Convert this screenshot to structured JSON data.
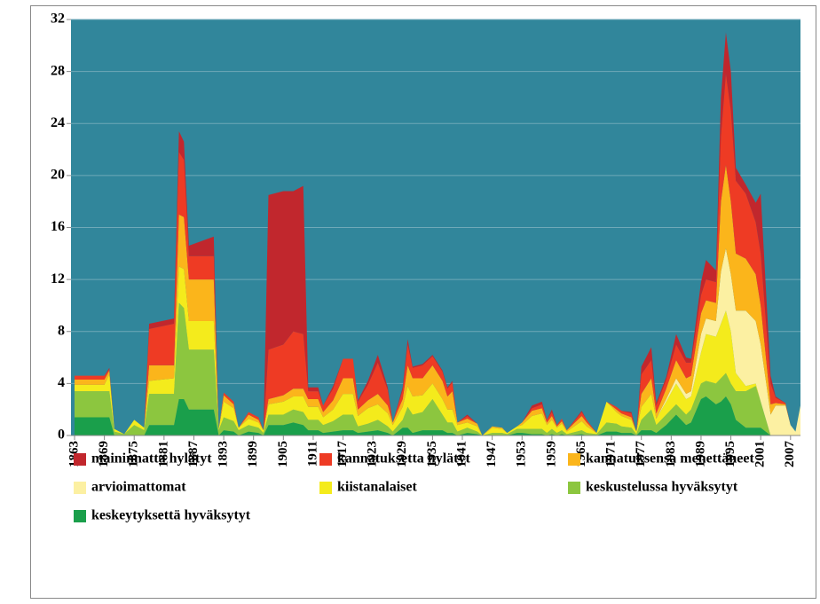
{
  "chart_data": {
    "type": "stacked_area",
    "x": [
      1863,
      1869,
      1870,
      1871,
      1873,
      1875,
      1877,
      1878,
      1883,
      1884,
      1885,
      1886,
      1891,
      1892,
      1893,
      1895,
      1896,
      1898,
      1900,
      1901,
      1902,
      1905,
      1907,
      1909,
      1910,
      1912,
      1913,
      1915,
      1917,
      1919,
      1920,
      1922,
      1924,
      1926,
      1927,
      1929,
      1930,
      1931,
      1933,
      1935,
      1937,
      1938,
      1939,
      1940,
      1942,
      1944,
      1945,
      1947,
      1949,
      1950,
      1952,
      1953,
      1955,
      1957,
      1958,
      1959,
      1960,
      1961,
      1962,
      1965,
      1966,
      1968,
      1970,
      1972,
      1973,
      1975,
      1976,
      1977,
      1979,
      1980,
      1982,
      1984,
      1986,
      1987,
      1989,
      1990,
      1992,
      1993,
      1994,
      1995,
      1996,
      1998,
      2000,
      2001,
      2003,
      2004,
      2006,
      2007,
      2008,
      2009
    ],
    "series": [
      {
        "name": "maininnatta hylätyt",
        "color": "#c1272d",
        "values": [
          0,
          0,
          0.1,
          0,
          0,
          0,
          0,
          0.4,
          0.4,
          1.6,
          1.4,
          0.8,
          1.5,
          0,
          0,
          0,
          0,
          0,
          0,
          0,
          11.9,
          11.8,
          10.8,
          11.4,
          0.3,
          0.3,
          0,
          0.2,
          0,
          0,
          0.1,
          0.3,
          0.6,
          0.2,
          0,
          0.2,
          0.4,
          0.1,
          0.1,
          0.1,
          0.1,
          0.1,
          0.1,
          0,
          0.1,
          0,
          0,
          0,
          0,
          0,
          0,
          0,
          0.2,
          0.2,
          0,
          0.2,
          0,
          0,
          0,
          0.1,
          0,
          0,
          0,
          0,
          0,
          0.1,
          0,
          0.6,
          1,
          0.2,
          0.2,
          0.8,
          0.4,
          0.3,
          1,
          1.5,
          0.9,
          3,
          3.2,
          3,
          1,
          0.7,
          1.5,
          4.6,
          0.6,
          0.1,
          0,
          0,
          0,
          0
        ]
      },
      {
        "name": "kannatuksetta hylätyt",
        "color": "#ee3b24",
        "values": [
          0.3,
          0.3,
          0.1,
          0,
          0,
          0,
          0,
          2.8,
          3.2,
          4.8,
          4.4,
          1.8,
          1.8,
          0,
          0.2,
          0.2,
          0,
          0.2,
          0.2,
          0,
          3.8,
          3.9,
          4.4,
          4.2,
          0.6,
          0.6,
          0.5,
          0.9,
          1.5,
          1.5,
          0.6,
          1.2,
          2.4,
          1.2,
          0,
          0.7,
          1.6,
          0.8,
          1,
          0.7,
          0.7,
          0.6,
          0.7,
          0,
          0.2,
          0,
          0,
          0,
          0,
          0,
          0,
          0,
          0.2,
          0.3,
          0.2,
          0.3,
          0.1,
          0.2,
          0,
          0.3,
          0.2,
          0,
          0,
          0.2,
          0.2,
          0.3,
          0,
          1.5,
          1.4,
          0.6,
          0.7,
          1.2,
          1.2,
          1,
          1.4,
          1.6,
          1.6,
          5,
          7,
          7,
          5.6,
          5,
          4,
          4,
          1.6,
          0.4,
          0.1,
          0,
          0,
          0
        ]
      },
      {
        "name": "kannatuksensa menettäneet",
        "color": "#fbb51b",
        "values": [
          0.4,
          0.4,
          0.3,
          0,
          0,
          0,
          0,
          1.2,
          1,
          4,
          4,
          3.2,
          3.2,
          0,
          0.5,
          0.3,
          0,
          0.3,
          0.2,
          0,
          0.4,
          0.5,
          0.6,
          0.6,
          0.6,
          0.6,
          0.4,
          0.7,
          1.2,
          1.2,
          0.5,
          0.6,
          0.8,
          0.6,
          0.2,
          0.6,
          1.6,
          1.4,
          1.3,
          1.4,
          1.4,
          1,
          1.4,
          0.2,
          0.3,
          0.2,
          0,
          0.1,
          0.1,
          0,
          0,
          0.2,
          0.4,
          0.4,
          0.2,
          0.3,
          0.1,
          0.2,
          0.1,
          0.4,
          0.3,
          0,
          0,
          0.2,
          0.2,
          0.2,
          0,
          1,
          1.2,
          0.4,
          0.8,
          1.4,
          1.2,
          1.2,
          1.6,
          1.4,
          1.4,
          5.4,
          6.4,
          5.6,
          4.4,
          4,
          3.6,
          3,
          0.8,
          0.2,
          0.1,
          0,
          0,
          0
        ]
      },
      {
        "name": "arvioimattomat",
        "color": "#fcf0a2",
        "values": [
          0,
          0,
          0,
          0,
          0,
          0,
          0,
          0,
          0,
          0,
          0,
          0,
          0,
          0,
          0,
          0,
          0,
          0,
          0,
          0,
          0,
          0,
          0,
          0,
          0,
          0,
          0,
          0,
          0,
          0,
          0,
          0,
          0,
          0,
          0,
          0,
          0,
          0,
          0,
          0,
          0,
          0,
          0,
          0,
          0,
          0,
          0,
          0,
          0,
          0,
          0,
          0,
          0,
          0,
          0,
          0,
          0,
          0,
          0,
          0,
          0,
          0,
          0,
          0,
          0,
          0,
          0,
          0,
          0,
          0,
          0.2,
          0.4,
          0.4,
          0.4,
          1.4,
          1.2,
          1.2,
          4,
          4.8,
          4.4,
          4.8,
          5.8,
          4.8,
          4.4,
          1.6,
          2.3,
          2.3,
          0.8,
          0.3,
          2.3
        ]
      },
      {
        "name": "kiistanalaiset",
        "color": "#f4eb1c",
        "values": [
          0.5,
          0.5,
          1.3,
          0.2,
          0,
          0.4,
          0.2,
          1,
          1.2,
          2.8,
          3,
          2.2,
          2.2,
          0.1,
          1.2,
          1,
          0.2,
          0.5,
          0.4,
          0.2,
          0.8,
          1,
          1,
          1.2,
          1,
          1,
          0.6,
          0.9,
          1.6,
          1.6,
          0.8,
          1.2,
          1.2,
          1,
          0.5,
          1,
          1.6,
          1.4,
          1.3,
          1.2,
          1.2,
          1,
          1,
          0.5,
          0.4,
          0.4,
          0,
          0.4,
          0.3,
          0.1,
          0.2,
          0.3,
          1,
          1.2,
          0.6,
          0.7,
          0.4,
          0.5,
          0.2,
          0.7,
          0.5,
          0.1,
          1.6,
          0.9,
          0.8,
          0.6,
          0.2,
          1,
          1.2,
          0.5,
          1,
          1.6,
          1.2,
          1,
          2.4,
          3.6,
          3.6,
          4.2,
          4.8,
          4,
          1.4,
          0.4,
          0.2,
          0,
          0,
          0,
          0,
          0,
          0,
          0
        ]
      },
      {
        "name": "keskustelussa hyväksytyt",
        "color": "#8cc63f",
        "values": [
          2,
          2,
          2,
          0.3,
          0.1,
          0.8,
          0.4,
          2.4,
          2.4,
          7.4,
          7,
          4.6,
          4.6,
          0.4,
          1,
          0.8,
          0.4,
          0.5,
          0.4,
          0.2,
          0.8,
          0.8,
          1,
          1,
          0.8,
          0.8,
          0.6,
          0.8,
          1.2,
          1.2,
          0.5,
          0.6,
          0.8,
          0.5,
          0.3,
          0.6,
          1.6,
          1.4,
          1.4,
          2.4,
          1.2,
          0.8,
          0.8,
          0.3,
          0.4,
          0.2,
          0,
          0.2,
          0.2,
          0.1,
          0.3,
          0.3,
          0.4,
          0.4,
          0.2,
          0.4,
          0.2,
          0.3,
          0.1,
          0.3,
          0.2,
          0.1,
          0.7,
          0.6,
          0.5,
          0.4,
          0.1,
          0.8,
          1.6,
          0.6,
          0.8,
          0.8,
          0.8,
          1,
          1.2,
          1.2,
          1.6,
          1.8,
          1.8,
          1.6,
          2.2,
          2.8,
          3.2,
          2,
          0,
          0,
          0,
          0,
          0,
          0
        ]
      },
      {
        "name": "keskeytyksettä hyväksytyt",
        "color": "#1a9f4b",
        "values": [
          1.4,
          1.4,
          1.4,
          0,
          0,
          0,
          0,
          0.8,
          0.8,
          2.8,
          2.8,
          2,
          2,
          0,
          0.4,
          0.3,
          0,
          0.3,
          0.2,
          0,
          0.8,
          0.8,
          1,
          0.8,
          0.4,
          0.4,
          0.2,
          0.3,
          0.4,
          0.4,
          0.2,
          0.3,
          0.4,
          0.2,
          0,
          0.6,
          0.6,
          0.2,
          0.4,
          0.4,
          0.4,
          0.2,
          0.2,
          0,
          0.2,
          0.1,
          0,
          0,
          0,
          0,
          0.2,
          0.2,
          0.1,
          0.1,
          0,
          0.1,
          0,
          0.1,
          0,
          0.1,
          0,
          0,
          0.3,
          0.3,
          0.2,
          0.2,
          0,
          0.4,
          0.4,
          0.2,
          0.8,
          1.6,
          0.8,
          1,
          2.8,
          3,
          2.4,
          2.6,
          3,
          2.4,
          1.2,
          0.6,
          0.6,
          0.6,
          0,
          0,
          0,
          0,
          0,
          0
        ]
      }
    ],
    "xlim": [
      1863,
      2009
    ],
    "xticks": [
      1863,
      1869,
      1875,
      1881,
      1887,
      1893,
      1899,
      1905,
      1911,
      1917,
      1923,
      1929,
      1935,
      1941,
      1947,
      1953,
      1959,
      1965,
      1971,
      1977,
      1983,
      1989,
      1995,
      2001,
      2007
    ],
    "ylim": [
      0,
      32
    ],
    "yticks": [
      0,
      4,
      8,
      12,
      16,
      20,
      24,
      28,
      32
    ],
    "grid": true,
    "plot_background": "#31869b"
  }
}
